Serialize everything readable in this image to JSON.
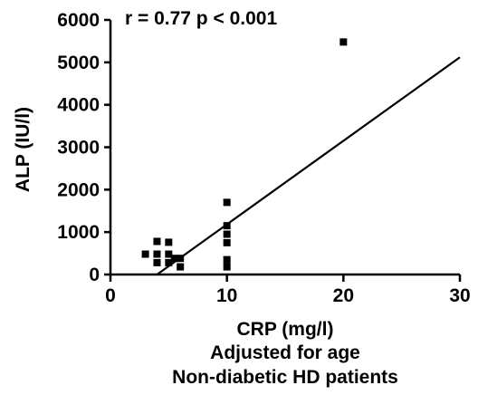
{
  "chart_data": {
    "type": "scatter",
    "annotation": "r = 0.77 p < 0.001",
    "xlabel": "CRP (mg/l)",
    "ylabel": "ALP (IU/l)",
    "subtitle_lines": [
      "Adjusted for age",
      "Non-diabetic HD patients"
    ],
    "xlim": [
      0,
      30
    ],
    "ylim": [
      0,
      6000
    ],
    "x_ticks": [
      0,
      10,
      20,
      30
    ],
    "y_ticks": [
      0,
      1000,
      2000,
      3000,
      4000,
      5000,
      6000
    ],
    "grid": false,
    "marker_color": "#000000",
    "points": [
      {
        "x": 3,
        "y": 480
      },
      {
        "x": 4,
        "y": 280
      },
      {
        "x": 4,
        "y": 480
      },
      {
        "x": 4,
        "y": 780
      },
      {
        "x": 5,
        "y": 280
      },
      {
        "x": 5,
        "y": 480
      },
      {
        "x": 5,
        "y": 760
      },
      {
        "x": 5.5,
        "y": 380
      },
      {
        "x": 6,
        "y": 180
      },
      {
        "x": 6,
        "y": 380
      },
      {
        "x": 10,
        "y": 180
      },
      {
        "x": 10,
        "y": 350
      },
      {
        "x": 10,
        "y": 750
      },
      {
        "x": 10,
        "y": 950
      },
      {
        "x": 10,
        "y": 1150
      },
      {
        "x": 10,
        "y": 1700
      },
      {
        "x": 20,
        "y": 5480
      }
    ],
    "regression_line": {
      "x": [
        4,
        30
      ],
      "y": [
        0,
        5120
      ]
    }
  }
}
